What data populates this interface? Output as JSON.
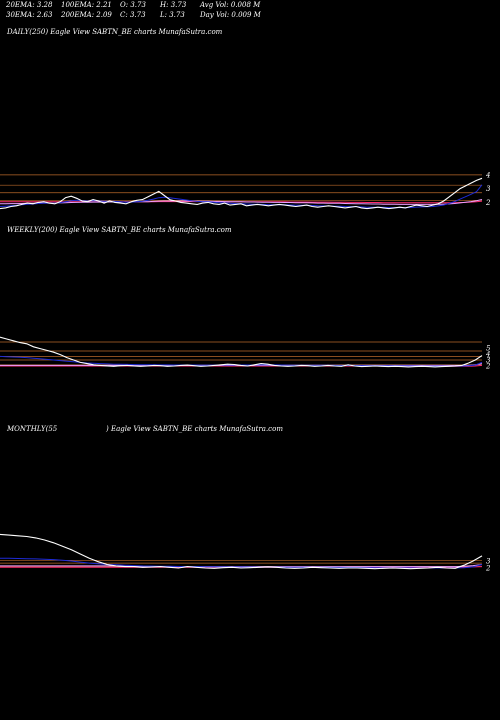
{
  "header": {
    "ema20": "20EMA: 3.28",
    "ema100": "100EMA: 2.21",
    "open": "O: 3.73",
    "high": "H: 3.73",
    "avg_vol": "Avg Vol: 0.008 M",
    "ema30": "30EMA: 2.63",
    "ema200": "200EMA: 2.09",
    "close": "C: 3.73",
    "low": "L: 3.73",
    "day_vol": "Day Vol: 0.009 M"
  },
  "panels": {
    "daily": {
      "title": "DAILY(250) Eagle   View  SABTN_BE charts MunafaSutra.com"
    },
    "weekly": {
      "title": "WEEKLY(200) Eagle   View  SABTN_BE charts MunafaSutra.com"
    },
    "monthly": {
      "title_left": "MONTHLY(55",
      "title_right": ") Eagle   View  SABTN_BE charts MunafaSutra.com"
    }
  },
  "colors": {
    "background": "#000000",
    "price": "#ffffff",
    "ema_short": "#1e2bd6",
    "ema_long": "#ff2a6e",
    "ema_mid": "#e8a0ff",
    "level_line": "#b8682a",
    "grid_blue": "#3a48ff"
  },
  "chart_data": [
    {
      "type": "line",
      "panel": "daily",
      "ylim": [
        0.5,
        4.5
      ],
      "y_ticks": [
        4,
        3,
        2
      ],
      "levels": [
        4,
        3.25,
        2.7,
        2.15
      ],
      "series": [
        {
          "values": [
            1.55,
            1.6,
            1.7,
            1.75,
            1.85,
            1.95,
            1.9,
            2.0,
            2.05,
            1.95,
            1.9,
            2.05,
            2.35,
            2.45,
            2.3,
            2.1,
            2.05,
            2.2,
            2.1,
            1.95,
            2.1,
            2.0,
            1.95,
            1.9,
            2.05,
            2.15,
            2.2,
            2.4,
            2.6,
            2.8,
            2.5,
            2.2,
            2.1,
            2.0,
            1.95,
            1.9,
            1.85,
            1.95,
            2.0,
            1.9,
            1.85,
            1.95,
            1.8,
            1.85,
            1.9,
            1.75,
            1.8,
            1.85,
            1.8,
            1.75,
            1.8,
            1.85,
            1.8,
            1.75,
            1.7,
            1.75,
            1.8,
            1.7,
            1.65,
            1.7,
            1.75,
            1.7,
            1.65,
            1.6,
            1.65,
            1.7,
            1.6,
            1.55,
            1.6,
            1.65,
            1.6,
            1.55,
            1.6,
            1.65,
            1.6,
            1.7,
            1.8,
            1.75,
            1.7,
            1.8,
            1.9,
            2.1,
            2.4,
            2.7,
            3.0,
            3.2,
            3.4,
            3.6,
            3.75
          ]
        },
        {
          "values": [
            1.7,
            1.72,
            1.75,
            1.78,
            1.82,
            1.86,
            1.88,
            1.92,
            1.95,
            1.95,
            1.94,
            1.97,
            2.05,
            2.12,
            2.15,
            2.13,
            2.11,
            2.13,
            2.12,
            2.08,
            2.09,
            2.07,
            2.04,
            2.01,
            2.02,
            2.05,
            2.08,
            2.15,
            2.24,
            2.34,
            2.37,
            2.33,
            2.28,
            2.22,
            2.17,
            2.12,
            2.07,
            2.05,
            2.04,
            2.01,
            1.98,
            1.97,
            1.94,
            1.92,
            1.91,
            1.88,
            1.87,
            1.86,
            1.85,
            1.83,
            1.83,
            1.83,
            1.82,
            1.81,
            1.79,
            1.79,
            1.79,
            1.77,
            1.75,
            1.74,
            1.74,
            1.73,
            1.72,
            1.7,
            1.69,
            1.69,
            1.67,
            1.65,
            1.65,
            1.65,
            1.64,
            1.62,
            1.62,
            1.62,
            1.62,
            1.63,
            1.66,
            1.67,
            1.68,
            1.7,
            1.74,
            1.81,
            1.92,
            2.06,
            2.24,
            2.41,
            2.59,
            2.78,
            3.28
          ]
        },
        {
          "values": [
            1.9,
            1.9,
            1.91,
            1.91,
            1.92,
            1.93,
            1.93,
            1.94,
            1.95,
            1.95,
            1.95,
            1.96,
            1.97,
            1.99,
            2.0,
            2.01,
            2.01,
            2.02,
            2.02,
            2.02,
            2.03,
            2.03,
            2.03,
            2.03,
            2.03,
            2.04,
            2.04,
            2.05,
            2.07,
            2.09,
            2.1,
            2.1,
            2.1,
            2.1,
            2.1,
            2.09,
            2.09,
            2.08,
            2.08,
            2.07,
            2.07,
            2.06,
            2.05,
            2.05,
            2.04,
            2.03,
            2.03,
            2.02,
            2.01,
            2.01,
            2.0,
            2.0,
            1.99,
            1.99,
            1.98,
            1.97,
            1.97,
            1.96,
            1.95,
            1.95,
            1.94,
            1.93,
            1.93,
            1.92,
            1.91,
            1.9,
            1.9,
            1.89,
            1.88,
            1.88,
            1.87,
            1.86,
            1.86,
            1.85,
            1.85,
            1.85,
            1.85,
            1.85,
            1.85,
            1.85,
            1.86,
            1.87,
            1.89,
            1.92,
            1.96,
            2.01,
            2.06,
            2.12,
            2.21
          ]
        },
        {
          "values": [
            2.05,
            2.05,
            2.05,
            2.05,
            2.05,
            2.05,
            2.05,
            2.05,
            2.05,
            2.05,
            2.05,
            2.05,
            2.05,
            2.05,
            2.05,
            2.05,
            2.05,
            2.05,
            2.05,
            2.05,
            2.05,
            2.05,
            2.05,
            2.05,
            2.05,
            2.05,
            2.05,
            2.05,
            2.05,
            2.06,
            2.06,
            2.06,
            2.06,
            2.06,
            2.06,
            2.06,
            2.06,
            2.06,
            2.06,
            2.06,
            2.06,
            2.05,
            2.05,
            2.05,
            2.05,
            2.05,
            2.05,
            2.05,
            2.04,
            2.04,
            2.04,
            2.04,
            2.04,
            2.03,
            2.03,
            2.03,
            2.03,
            2.02,
            2.02,
            2.02,
            2.02,
            2.01,
            2.01,
            2.01,
            2.0,
            2.0,
            2.0,
            1.99,
            1.99,
            1.99,
            1.98,
            1.98,
            1.98,
            1.97,
            1.97,
            1.97,
            1.97,
            1.97,
            1.97,
            1.97,
            1.97,
            1.97,
            1.98,
            1.98,
            1.99,
            2.0,
            2.02,
            2.04,
            2.09
          ]
        }
      ]
    },
    {
      "type": "line",
      "panel": "weekly",
      "ylim": [
        1,
        7
      ],
      "y_ticks": [
        5,
        4,
        3,
        2
      ],
      "levels": [
        6,
        4.5,
        3.6,
        3,
        2.2
      ],
      "series": [
        {
          "values": [
            6.8,
            6.5,
            6.2,
            5.9,
            5.7,
            5.2,
            4.9,
            4.6,
            4.3,
            3.9,
            3.4,
            3.0,
            2.6,
            2.4,
            2.2,
            2.1,
            2.0,
            1.95,
            2.05,
            2.1,
            2.0,
            1.95,
            2.0,
            2.1,
            2.05,
            1.95,
            2.0,
            2.1,
            2.15,
            2.05,
            1.95,
            2.0,
            2.1,
            2.2,
            2.3,
            2.25,
            2.1,
            2.0,
            2.2,
            2.4,
            2.3,
            2.1,
            2.0,
            1.95,
            2.0,
            2.1,
            2.05,
            1.95,
            2.0,
            2.1,
            2.0,
            1.95,
            2.2,
            2.0,
            1.9,
            1.95,
            2.0,
            1.95,
            1.9,
            1.95,
            1.9,
            1.85,
            1.9,
            1.95,
            1.9,
            1.85,
            1.9,
            1.95,
            2.0,
            2.1,
            2.5,
            3.0,
            3.73
          ]
        },
        {
          "values": [
            3.6,
            3.55,
            3.5,
            3.45,
            3.4,
            3.3,
            3.2,
            3.1,
            3.0,
            2.9,
            2.8,
            2.7,
            2.6,
            2.5,
            2.45,
            2.4,
            2.35,
            2.3,
            2.28,
            2.26,
            2.24,
            2.22,
            2.2,
            2.2,
            2.19,
            2.18,
            2.17,
            2.17,
            2.17,
            2.16,
            2.15,
            2.15,
            2.15,
            2.16,
            2.17,
            2.18,
            2.17,
            2.16,
            2.17,
            2.19,
            2.2,
            2.19,
            2.17,
            2.15,
            2.14,
            2.14,
            2.13,
            2.12,
            2.11,
            2.11,
            2.1,
            2.09,
            2.1,
            2.09,
            2.07,
            2.06,
            2.06,
            2.05,
            2.04,
            2.03,
            2.02,
            2.01,
            2.0,
            2.0,
            1.99,
            1.98,
            1.98,
            1.98,
            1.98,
            2.0,
            2.05,
            2.15,
            2.6
          ]
        },
        {
          "values": [
            2.1,
            2.1,
            2.1,
            2.1,
            2.1,
            2.1,
            2.1,
            2.1,
            2.1,
            2.1,
            2.1,
            2.1,
            2.1,
            2.1,
            2.1,
            2.1,
            2.1,
            2.1,
            2.1,
            2.1,
            2.1,
            2.1,
            2.1,
            2.1,
            2.1,
            2.1,
            2.1,
            2.1,
            2.1,
            2.1,
            2.1,
            2.1,
            2.1,
            2.1,
            2.1,
            2.1,
            2.1,
            2.1,
            2.1,
            2.1,
            2.1,
            2.1,
            2.1,
            2.1,
            2.1,
            2.1,
            2.1,
            2.1,
            2.1,
            2.1,
            2.1,
            2.1,
            2.1,
            2.1,
            2.1,
            2.1,
            2.1,
            2.1,
            2.1,
            2.1,
            2.1,
            2.1,
            2.1,
            2.1,
            2.1,
            2.1,
            2.1,
            2.1,
            2.1,
            2.1,
            2.1,
            2.2,
            2.4
          ]
        },
        {
          "values": [
            2.0,
            2.0,
            2.0,
            2.0,
            2.0,
            2.0,
            2.0,
            2.0,
            2.0,
            2.0,
            2.0,
            2.0,
            2.0,
            2.0,
            2.0,
            2.0,
            2.0,
            2.0,
            2.0,
            2.0,
            2.0,
            2.0,
            2.0,
            2.0,
            2.0,
            2.0,
            2.0,
            2.0,
            2.0,
            2.0,
            2.0,
            2.0,
            2.0,
            2.0,
            2.0,
            2.0,
            2.0,
            2.0,
            2.0,
            2.0,
            2.0,
            2.0,
            2.0,
            2.0,
            2.0,
            2.0,
            2.0,
            2.0,
            2.0,
            2.0,
            2.0,
            2.0,
            2.0,
            2.0,
            2.0,
            2.0,
            2.0,
            2.0,
            2.0,
            2.0,
            2.0,
            2.0,
            2.0,
            1.95,
            1.95,
            1.95,
            1.95,
            1.95,
            1.95,
            1.95,
            1.95,
            2.0,
            2.1
          ]
        }
      ]
    },
    {
      "type": "line",
      "panel": "monthly",
      "ylim": [
        1,
        7
      ],
      "y_ticks": [
        3,
        2
      ],
      "levels": [
        3.1,
        2.7,
        2.2
      ],
      "series": [
        {
          "values": [
            6.8,
            6.7,
            6.6,
            6.5,
            6.3,
            6.0,
            5.6,
            5.1,
            4.6,
            4.0,
            3.4,
            2.9,
            2.5,
            2.3,
            2.2,
            2.2,
            2.1,
            2.15,
            2.2,
            2.1,
            2.0,
            2.2,
            2.1,
            2.0,
            1.95,
            2.05,
            2.1,
            2.0,
            2.05,
            2.1,
            2.15,
            2.1,
            2.0,
            1.95,
            2.0,
            2.1,
            2.05,
            2.0,
            1.95,
            2.0,
            2.0,
            1.95,
            1.9,
            1.95,
            2.0,
            1.95,
            1.9,
            1.95,
            2.0,
            2.1,
            2.0,
            1.95,
            2.4,
            3.0,
            3.73
          ]
        },
        {
          "values": [
            3.4,
            3.38,
            3.36,
            3.33,
            3.3,
            3.25,
            3.2,
            3.1,
            3.0,
            2.85,
            2.7,
            2.6,
            2.5,
            2.45,
            2.4,
            2.35,
            2.3,
            2.28,
            2.26,
            2.24,
            2.22,
            2.22,
            2.21,
            2.19,
            2.17,
            2.16,
            2.16,
            2.15,
            2.14,
            2.13,
            2.13,
            2.13,
            2.12,
            2.11,
            2.1,
            2.1,
            2.1,
            2.09,
            2.08,
            2.07,
            2.07,
            2.06,
            2.05,
            2.04,
            2.04,
            2.03,
            2.02,
            2.01,
            2.01,
            2.02,
            2.02,
            2.01,
            2.05,
            2.15,
            2.5
          ]
        },
        {
          "values": [
            2.3,
            2.3,
            2.3,
            2.3,
            2.3,
            2.3,
            2.3,
            2.3,
            2.3,
            2.3,
            2.3,
            2.3,
            2.3,
            2.28,
            2.26,
            2.24,
            2.22,
            2.2,
            2.2,
            2.2,
            2.2,
            2.2,
            2.2,
            2.2,
            2.2,
            2.2,
            2.2,
            2.2,
            2.2,
            2.2,
            2.2,
            2.2,
            2.2,
            2.2,
            2.2,
            2.2,
            2.2,
            2.2,
            2.2,
            2.2,
            2.2,
            2.2,
            2.2,
            2.2,
            2.2,
            2.2,
            2.2,
            2.2,
            2.2,
            2.2,
            2.2,
            2.2,
            2.25,
            2.35,
            2.5
          ]
        },
        {
          "values": [
            2.1,
            2.1,
            2.1,
            2.1,
            2.1,
            2.1,
            2.1,
            2.1,
            2.1,
            2.1,
            2.1,
            2.1,
            2.1,
            2.1,
            2.1,
            2.1,
            2.1,
            2.1,
            2.1,
            2.1,
            2.1,
            2.1,
            2.1,
            2.1,
            2.1,
            2.1,
            2.1,
            2.1,
            2.1,
            2.1,
            2.1,
            2.1,
            2.1,
            2.1,
            2.1,
            2.1,
            2.1,
            2.1,
            2.1,
            2.1,
            2.1,
            2.1,
            2.1,
            2.1,
            2.1,
            2.1,
            2.1,
            2.1,
            2.1,
            2.1,
            2.1,
            2.1,
            2.1,
            2.15,
            2.2
          ]
        }
      ]
    }
  ]
}
